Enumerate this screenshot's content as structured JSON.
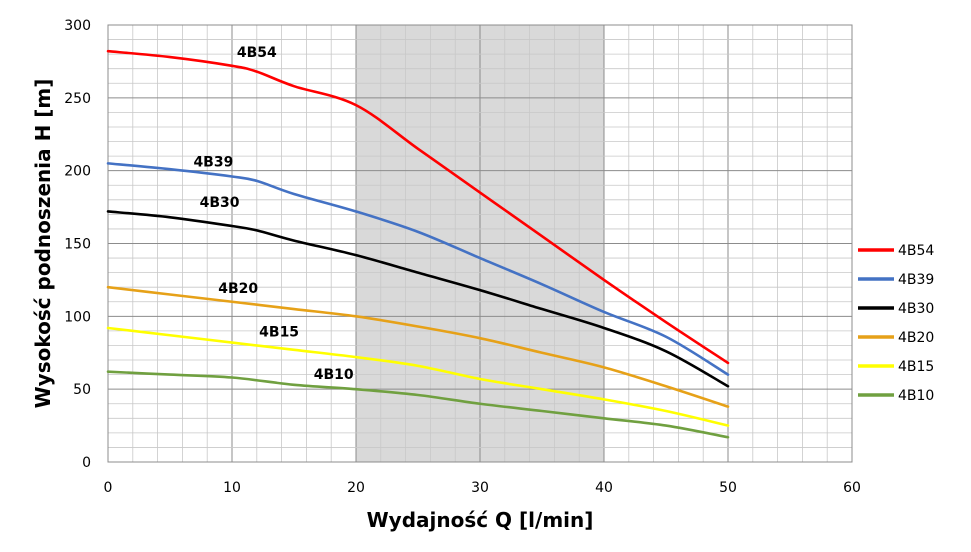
{
  "chart_data": {
    "type": "line",
    "title": "",
    "xlabel": "Wydajność Q [l/min]",
    "ylabel": "Wysokość podnoszenia H [m]",
    "xlim": [
      0,
      60
    ],
    "ylim": [
      0,
      300
    ],
    "xticks": [
      0,
      10,
      20,
      30,
      40,
      50,
      60
    ],
    "yticks": [
      0,
      50,
      100,
      150,
      200,
      250,
      300
    ],
    "grid": true,
    "shaded_region": {
      "x_from": 20,
      "x_to": 40,
      "color": "#d9d9d9"
    },
    "legend_position": "right",
    "series": [
      {
        "name": "4B54",
        "color": "#ff0000",
        "x": [
          0,
          5,
          10,
          12,
          15,
          20,
          25,
          30,
          35,
          40,
          45,
          50
        ],
        "y": [
          282,
          278,
          272,
          268,
          258,
          245,
          215,
          185,
          155,
          125,
          96,
          68
        ]
      },
      {
        "name": "4B39",
        "color": "#4472c4",
        "x": [
          0,
          5,
          10,
          12,
          15,
          20,
          25,
          30,
          35,
          40,
          45,
          50
        ],
        "y": [
          205,
          201,
          196,
          193,
          184,
          172,
          158,
          140,
          122,
          103,
          86,
          60
        ]
      },
      {
        "name": "4B30",
        "color": "#000000",
        "x": [
          0,
          5,
          10,
          12,
          15,
          20,
          25,
          30,
          35,
          40,
          45,
          50
        ],
        "y": [
          172,
          168,
          162,
          159,
          152,
          142,
          130,
          118,
          105,
          92,
          76,
          52
        ]
      },
      {
        "name": "4B20",
        "color": "#e6a118",
        "x": [
          0,
          5,
          10,
          15,
          20,
          25,
          30,
          35,
          40,
          45,
          50
        ],
        "y": [
          120,
          115,
          110,
          105,
          100,
          93,
          85,
          75,
          65,
          52,
          38
        ]
      },
      {
        "name": "4B15",
        "color": "#ffff00",
        "x": [
          0,
          5,
          10,
          15,
          20,
          25,
          30,
          35,
          40,
          45,
          50
        ],
        "y": [
          92,
          87,
          82,
          77,
          72,
          66,
          57,
          50,
          43,
          35,
          25
        ]
      },
      {
        "name": "4B10",
        "color": "#70a040",
        "x": [
          0,
          5,
          10,
          15,
          20,
          25,
          30,
          35,
          40,
          45,
          50
        ],
        "y": [
          62,
          60,
          58,
          53,
          50,
          46,
          40,
          35,
          30,
          25,
          17
        ]
      }
    ],
    "labels": [
      {
        "text": "4B54",
        "x": 12,
        "y": 278
      },
      {
        "text": "4B39",
        "x": 8.5,
        "y": 203
      },
      {
        "text": "4B30",
        "x": 9,
        "y": 175
      },
      {
        "text": "4B20",
        "x": 10.5,
        "y": 116
      },
      {
        "text": "4B15",
        "x": 13.8,
        "y": 86
      },
      {
        "text": "4B10",
        "x": 18.2,
        "y": 57
      }
    ]
  }
}
